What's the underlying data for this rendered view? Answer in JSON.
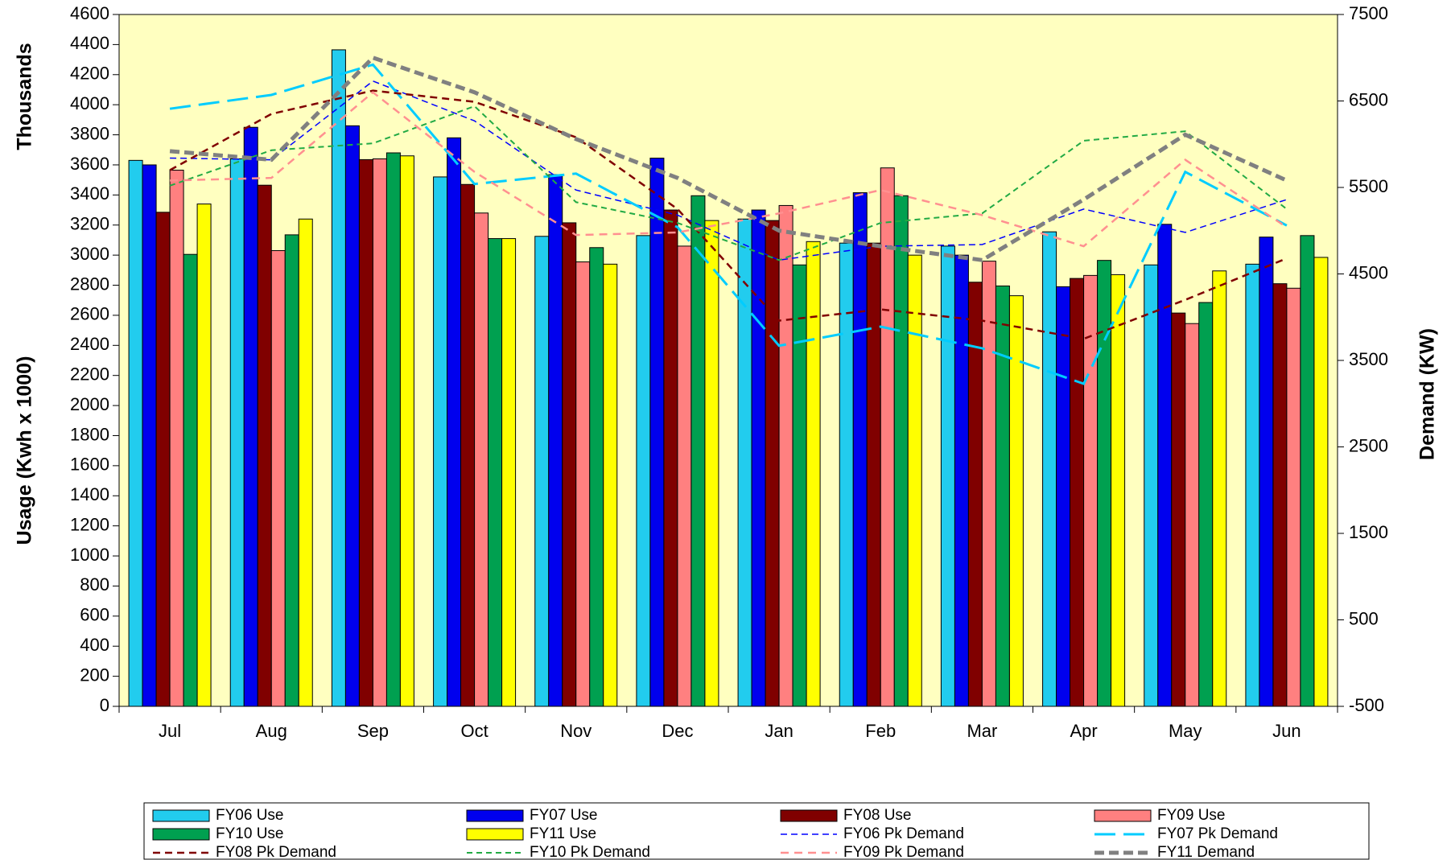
{
  "chart_data": {
    "type": "bar",
    "y_label": "Usage (Kwh x 1000)",
    "y_unit": "Thousands",
    "y2_label": "Demand (KW)",
    "categories": [
      "Jul",
      "Aug",
      "Sep",
      "Oct",
      "Nov",
      "Dec",
      "Jan",
      "Feb",
      "Mar",
      "Apr",
      "May",
      "Jun"
    ],
    "ylim": [
      0,
      4600
    ],
    "yticks": [
      0,
      200,
      400,
      600,
      800,
      1000,
      1200,
      1400,
      1600,
      1800,
      2000,
      2200,
      2400,
      2600,
      2800,
      3000,
      3200,
      3400,
      3600,
      3800,
      4000,
      4200,
      4400,
      4600
    ],
    "y2lim": [
      -500,
      7500
    ],
    "y2ticks": [
      -500,
      500,
      1500,
      2500,
      3500,
      4500,
      5500,
      6500,
      7500
    ],
    "series": [
      {
        "name": "FY06 Use",
        "color": "#22ccee",
        "values": [
          3630,
          3640,
          4365,
          3520,
          3125,
          3130,
          3240,
          3080,
          3060,
          3155,
          2935,
          2940
        ]
      },
      {
        "name": "FY07 Use",
        "color": "#0000ee",
        "values": [
          3600,
          3850,
          3860,
          3780,
          3535,
          3645,
          3300,
          3415,
          3000,
          2790,
          3205,
          3120
        ]
      },
      {
        "name": "FY08 Use",
        "color": "#800000",
        "values": [
          3285,
          3465,
          3635,
          3470,
          3215,
          3300,
          3230,
          3080,
          2820,
          2845,
          2615,
          2810
        ]
      },
      {
        "name": "FY09 Use",
        "color": "#ff8080",
        "values": [
          3565,
          3030,
          3640,
          3280,
          2955,
          3060,
          3330,
          3580,
          2960,
          2865,
          2545,
          2780
        ]
      },
      {
        "name": "FY10 Use",
        "color": "#00a050",
        "values": [
          3005,
          3135,
          3680,
          3110,
          3050,
          3395,
          2935,
          3395,
          2795,
          2965,
          2685,
          3130
        ]
      },
      {
        "name": "FY11 Use",
        "color": "#ffff00",
        "values": [
          3340,
          3240,
          3660,
          3110,
          2940,
          3230,
          3090,
          3000,
          2730,
          2870,
          2895,
          2985
        ]
      },
      {
        "name": "FY06 Pk Demand",
        "color": "#0000ff",
        "axis": "y2",
        "values": [
          5840,
          5820,
          6730,
          6270,
          5470,
          5180,
          4660,
          4820,
          4840,
          5250,
          4980,
          5360
        ]
      },
      {
        "name": "FY07 Pk Demand",
        "color": "#00ccff",
        "axis": "y2",
        "values": [
          6410,
          6570,
          6920,
          5540,
          5660,
          5040,
          3670,
          3890,
          3640,
          3230,
          5680,
          5060
        ]
      },
      {
        "name": "FY08 Pk Demand",
        "color": "#800000",
        "axis": "y2",
        "values": [
          5700,
          6350,
          6620,
          6490,
          6080,
          5250,
          3960,
          4090,
          3960,
          3750,
          4200,
          4680
        ]
      },
      {
        "name": "FY10 Pk Demand",
        "color": "#22aa44",
        "axis": "y2",
        "values": [
          5520,
          5930,
          6010,
          6440,
          5330,
          5090,
          4660,
          5090,
          5200,
          6040,
          6150,
          5250
        ]
      },
      {
        "name": "FY09 Pk Demand",
        "color": "#ff9090",
        "axis": "y2",
        "values": [
          5580,
          5610,
          6600,
          5680,
          4950,
          4980,
          5200,
          5470,
          5180,
          4820,
          5820,
          5040
        ]
      },
      {
        "name": "FY11 Demand",
        "color": "#808080",
        "axis": "y2",
        "values": [
          5920,
          5820,
          7000,
          6600,
          6060,
          5610,
          5000,
          4820,
          4660,
          5360,
          6110,
          5580
        ]
      }
    ]
  }
}
